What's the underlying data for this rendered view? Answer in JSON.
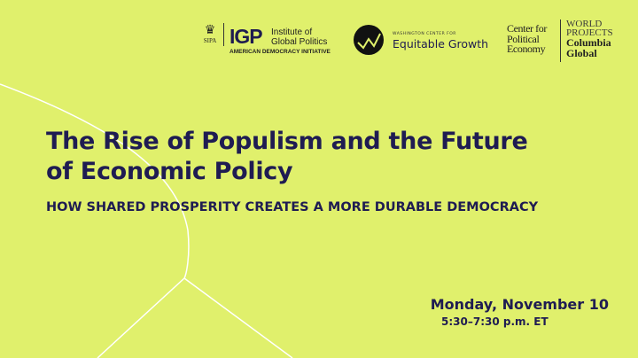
{
  "logos": {
    "sipa": "SIPA",
    "igp": "IGP",
    "igp_name": "Institute of Global Politics",
    "igp_initiative": "AMERICAN DEMOCRACY INITIATIVE",
    "washington_center": "WASHINGTON CENTER FOR",
    "equitable_growth": "Equitable Growth",
    "center_political_economy": "Center for Political Economy",
    "world_projects": "WORLD PROJECTS",
    "columbia_global": "Columbia Global"
  },
  "event": {
    "title_line1": "The Rise of Populism and the Future",
    "title_line2": "of Economic Policy",
    "subtitle": "HOW SHARED PROSPERITY CREATES A MORE DURABLE DEMOCRACY",
    "date": "Monday, November 10",
    "time": "5:30–7:30 p.m. ET"
  },
  "colors": {
    "background": "#e0f06c",
    "text": "#1f1c52",
    "lines": "#ffffff"
  }
}
